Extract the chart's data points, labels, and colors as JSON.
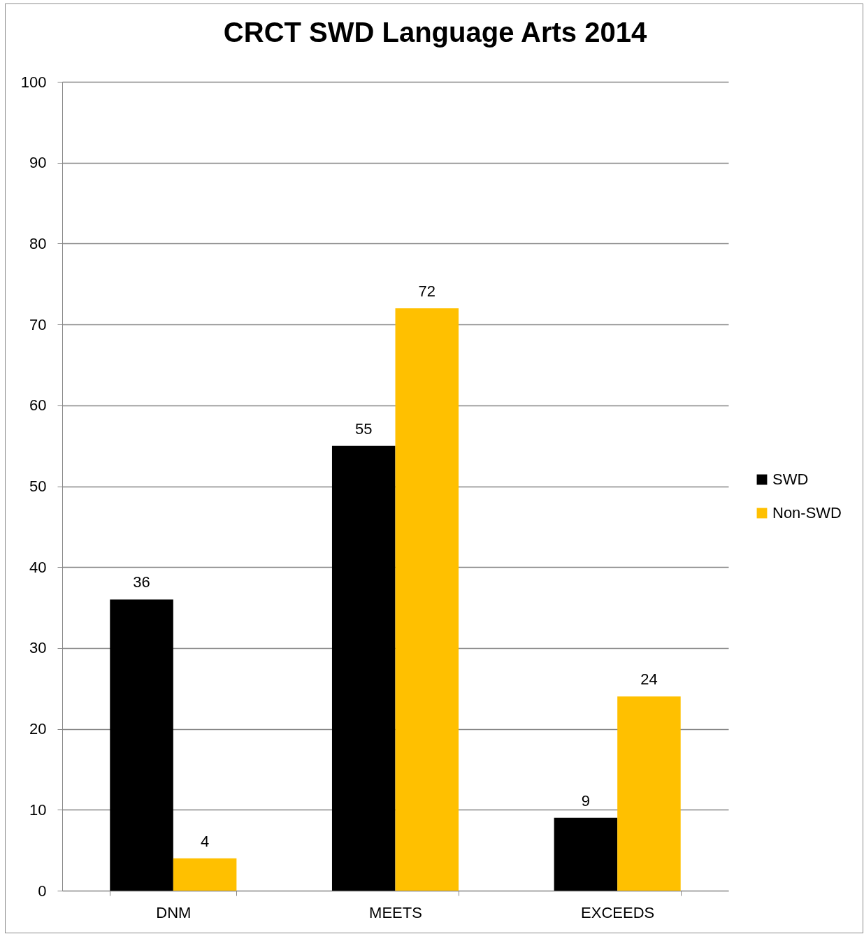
{
  "chart_data": {
    "type": "bar",
    "title": "CRCT SWD Language Arts 2014",
    "categories": [
      "DNM",
      "MEETS",
      "EXCEEDS"
    ],
    "series": [
      {
        "name": "SWD",
        "color": "#000000",
        "values": [
          36,
          55,
          9
        ]
      },
      {
        "name": "Non-SWD",
        "color": "#ffc000",
        "values": [
          4,
          72,
          24
        ]
      }
    ],
    "ylim": [
      0,
      100
    ],
    "yticks": [
      0,
      10,
      20,
      30,
      40,
      50,
      60,
      70,
      80,
      90,
      100
    ],
    "grid": "y",
    "legend": "right",
    "data_labels": true
  }
}
